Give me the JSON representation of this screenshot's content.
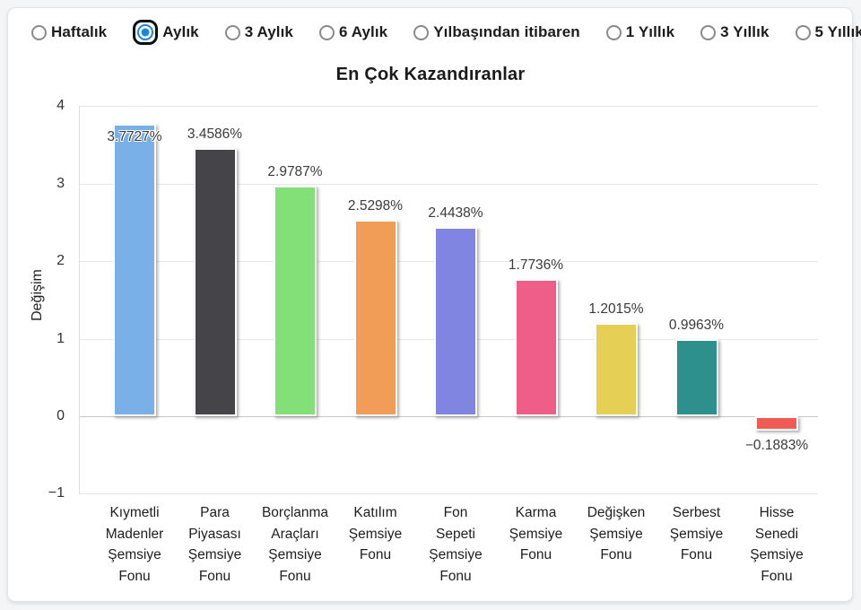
{
  "period_selector": {
    "options": [
      {
        "label": "Haftalık",
        "selected": false
      },
      {
        "label": "Aylık",
        "selected": true
      },
      {
        "label": "3 Aylık",
        "selected": false
      },
      {
        "label": "6 Aylık",
        "selected": false
      },
      {
        "label": "Yılbaşından itibaren",
        "selected": false
      },
      {
        "label": "1 Yıllık",
        "selected": false
      },
      {
        "label": "3 Yıllık",
        "selected": false
      },
      {
        "label": "5 Yıllık",
        "selected": false
      }
    ],
    "selected_color": "#1a87e0"
  },
  "chart_data": {
    "type": "bar",
    "title": "En Çok Kazandıranlar",
    "xlabel": "",
    "ylabel": "Değişim",
    "ylim": [
      -1,
      4
    ],
    "yticks": [
      4,
      3,
      2,
      1,
      0,
      -1
    ],
    "ytick_labels": [
      "4",
      "3",
      "2",
      "1",
      "0",
      "−1"
    ],
    "grid": true,
    "legend": false,
    "categories": [
      "Kıymetli\nMadenler\nŞemsiye\nFonu",
      "Para\nPiyasası\nŞemsiye\nFonu",
      "Borçlanma\nAraçları\nŞemsiye\nFonu",
      "Katılım\nŞemsiye\nFonu",
      "Fon\nSepeti\nŞemsiye\nFonu",
      "Karma\nŞemsiye\nFonu",
      "Değişken\nŞemsiye\nFonu",
      "Serbest\nŞemsiye\nFonu",
      "Hisse\nSenedi\nŞemsiye\nFonu"
    ],
    "values": [
      3.7727,
      3.4586,
      2.9787,
      2.5298,
      2.4438,
      1.7736,
      1.2015,
      0.9963,
      -0.1883
    ],
    "value_labels": [
      "3.7727%",
      "3.4586%",
      "2.9787%",
      "2.5298%",
      "2.4438%",
      "1.7736%",
      "1.2015%",
      "0.9963%",
      "−0.1883%"
    ],
    "bar_colors": [
      "#7ab0e8",
      "#454449",
      "#83e078",
      "#f19c57",
      "#8185e2",
      "#ef5e88",
      "#e5d055",
      "#2e908c",
      "#f15b55"
    ],
    "grid_color": "#e6e6e6",
    "zero_line_color": "#c7c7c7"
  }
}
